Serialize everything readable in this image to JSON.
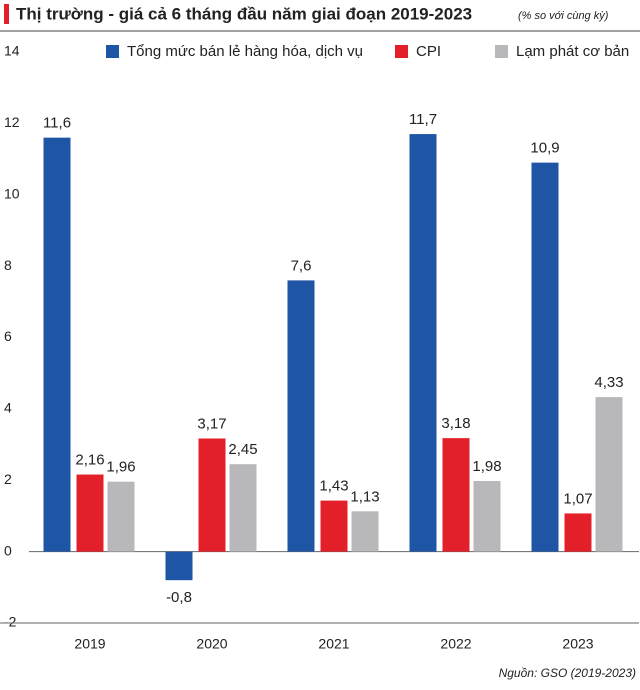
{
  "chart_data": {
    "type": "bar",
    "title": "Thị trường - giá cả 6 tháng đầu năm giai đoạn 2019-2023",
    "subtitle": "(% so với cùng kỳ)",
    "source": "Nguồn: GSO (2019-2023)",
    "categories": [
      "2019",
      "2020",
      "2021",
      "2022",
      "2023"
    ],
    "series": [
      {
        "name": "Tổng mức bán lẻ hàng hóa, dịch vụ",
        "color": "#1f55a5",
        "values": [
          11.6,
          -0.8,
          7.6,
          11.7,
          10.9
        ],
        "value_labels": [
          "11,6",
          "-0,8",
          "7,6",
          "11,7",
          "10,9"
        ]
      },
      {
        "name": "CPI",
        "color": "#e3202a",
        "values": [
          2.16,
          3.17,
          1.43,
          3.18,
          1.07
        ],
        "value_labels": [
          "2,16",
          "3,17",
          "1,43",
          "3,18",
          "1,07"
        ]
      },
      {
        "name": "Lạm phát cơ bản",
        "color": "#b8b8ba",
        "values": [
          1.96,
          2.45,
          1.13,
          1.98,
          4.33
        ],
        "value_labels": [
          "1,96",
          "2,45",
          "1,13",
          "1,98",
          "4,33"
        ]
      }
    ],
    "ylim": [
      -2,
      14
    ],
    "yticks": [
      -2,
      0,
      2,
      4,
      6,
      8,
      10,
      12,
      14
    ],
    "grid": false,
    "legend": "top"
  }
}
